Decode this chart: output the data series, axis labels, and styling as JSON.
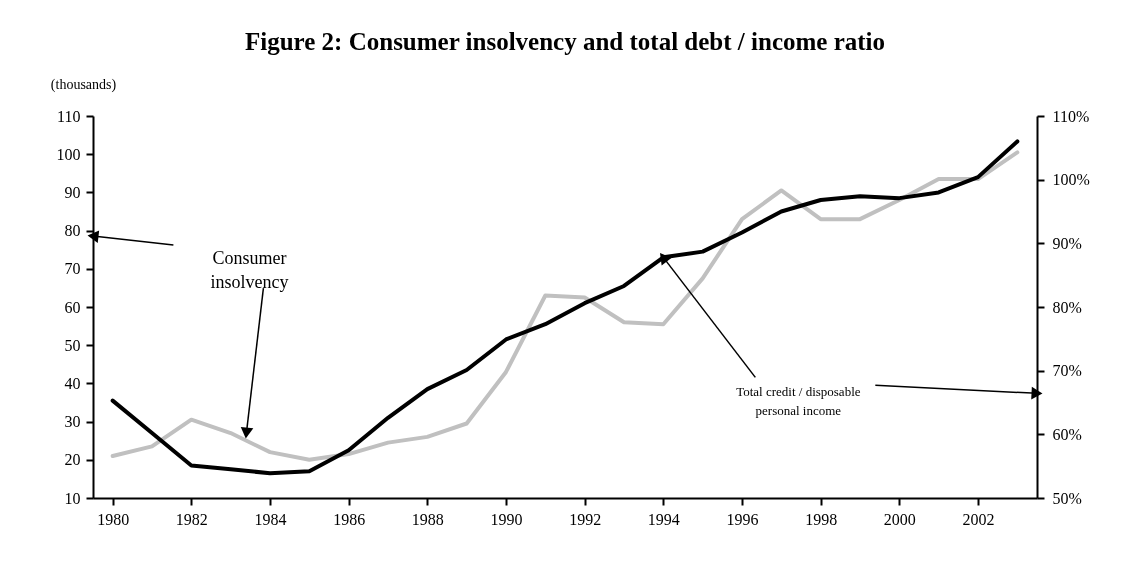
{
  "chart_data": {
    "type": "line",
    "title": "Figure 2: Consumer insolvency and total debt / income ratio",
    "ylabel": "(thousands)",
    "x": [
      1980,
      1981,
      1982,
      1983,
      1984,
      1985,
      1986,
      1987,
      1988,
      1989,
      1990,
      1991,
      1992,
      1993,
      1994,
      1995,
      1996,
      1997,
      1998,
      1999,
      2000,
      2001,
      2002,
      2003
    ],
    "series": [
      {
        "color": "#c0c0c0",
        "values": [
          21,
          23.5,
          30.5,
          27,
          22,
          20,
          21.5,
          24.5,
          26,
          29.5,
          43,
          63,
          62.5,
          56,
          55.5,
          67.5,
          83,
          90.5,
          83,
          83,
          88,
          93.5,
          93.5,
          100.5
        ]
      },
      {
        "color": "#000000",
        "axis": "y2",
        "values": [
          65.3,
          60.2,
          55.1,
          54.5,
          53.9,
          54.2,
          57.5,
          62.6,
          67.1,
          70.1,
          74.9,
          77.3,
          80.6,
          83.3,
          87.8,
          88.7,
          91.7,
          95,
          96.8,
          97.4,
          97.1,
          98,
          100.4,
          106
        ]
      }
    ],
    "xlim": [
      1979.5,
      2003.5
    ],
    "xticks": [
      1980,
      1982,
      1984,
      1986,
      1988,
      1990,
      1992,
      1994,
      1996,
      1998,
      2000,
      2002
    ],
    "ylim": [
      10,
      110
    ],
    "yticks": [
      10,
      20,
      30,
      40,
      50,
      60,
      70,
      80,
      90,
      100,
      110
    ],
    "y2lim": [
      50,
      110
    ],
    "y2ticks": [
      {
        "value": 50,
        "label": "50%"
      },
      {
        "value": 60,
        "label": "60%"
      },
      {
        "value": 70,
        "label": "70%"
      },
      {
        "value": 80,
        "label": "80%"
      },
      {
        "value": 90,
        "label": "90%"
      },
      {
        "value": 100,
        "label": "100%"
      },
      {
        "value": 110,
        "label": "110%"
      }
    ],
    "annotations": [
      {
        "text": "Consumer\ninsolvency",
        "x": 1983.4,
        "y": 27
      },
      {
        "text": "Total credit / disposable\npersonal income",
        "x": 1994,
        "y": 73
      }
    ],
    "grid": false,
    "marker": "none",
    "line_style": "solid"
  }
}
